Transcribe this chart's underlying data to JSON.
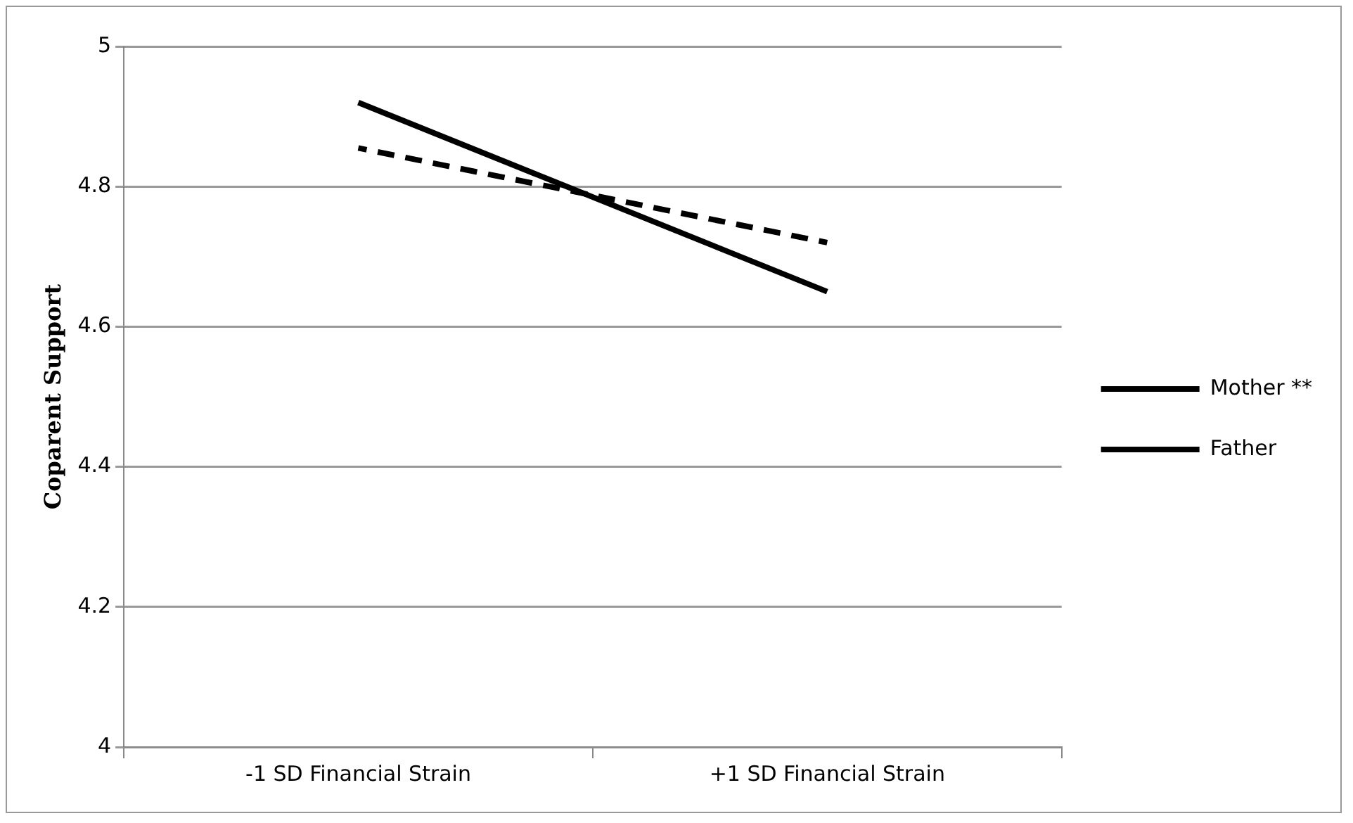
{
  "chart_data": {
    "type": "line",
    "ylabel": "Coparent Support",
    "categories": [
      "-1 SD Financial Strain",
      "+1 SD Financial Strain"
    ],
    "series": [
      {
        "name": "Mother **",
        "color": "#000000",
        "values": [
          4.92,
          4.65
        ],
        "line_style": "solid"
      },
      {
        "name": "Father",
        "color": "#000000",
        "values": [
          4.855,
          4.72
        ],
        "line_style": "dashed"
      }
    ],
    "ylim": [
      4,
      5
    ],
    "yticks": [
      4,
      4.2,
      4.4,
      4.6,
      4.8,
      5
    ],
    "grid": "y",
    "legend": "right",
    "marker": "none"
  }
}
